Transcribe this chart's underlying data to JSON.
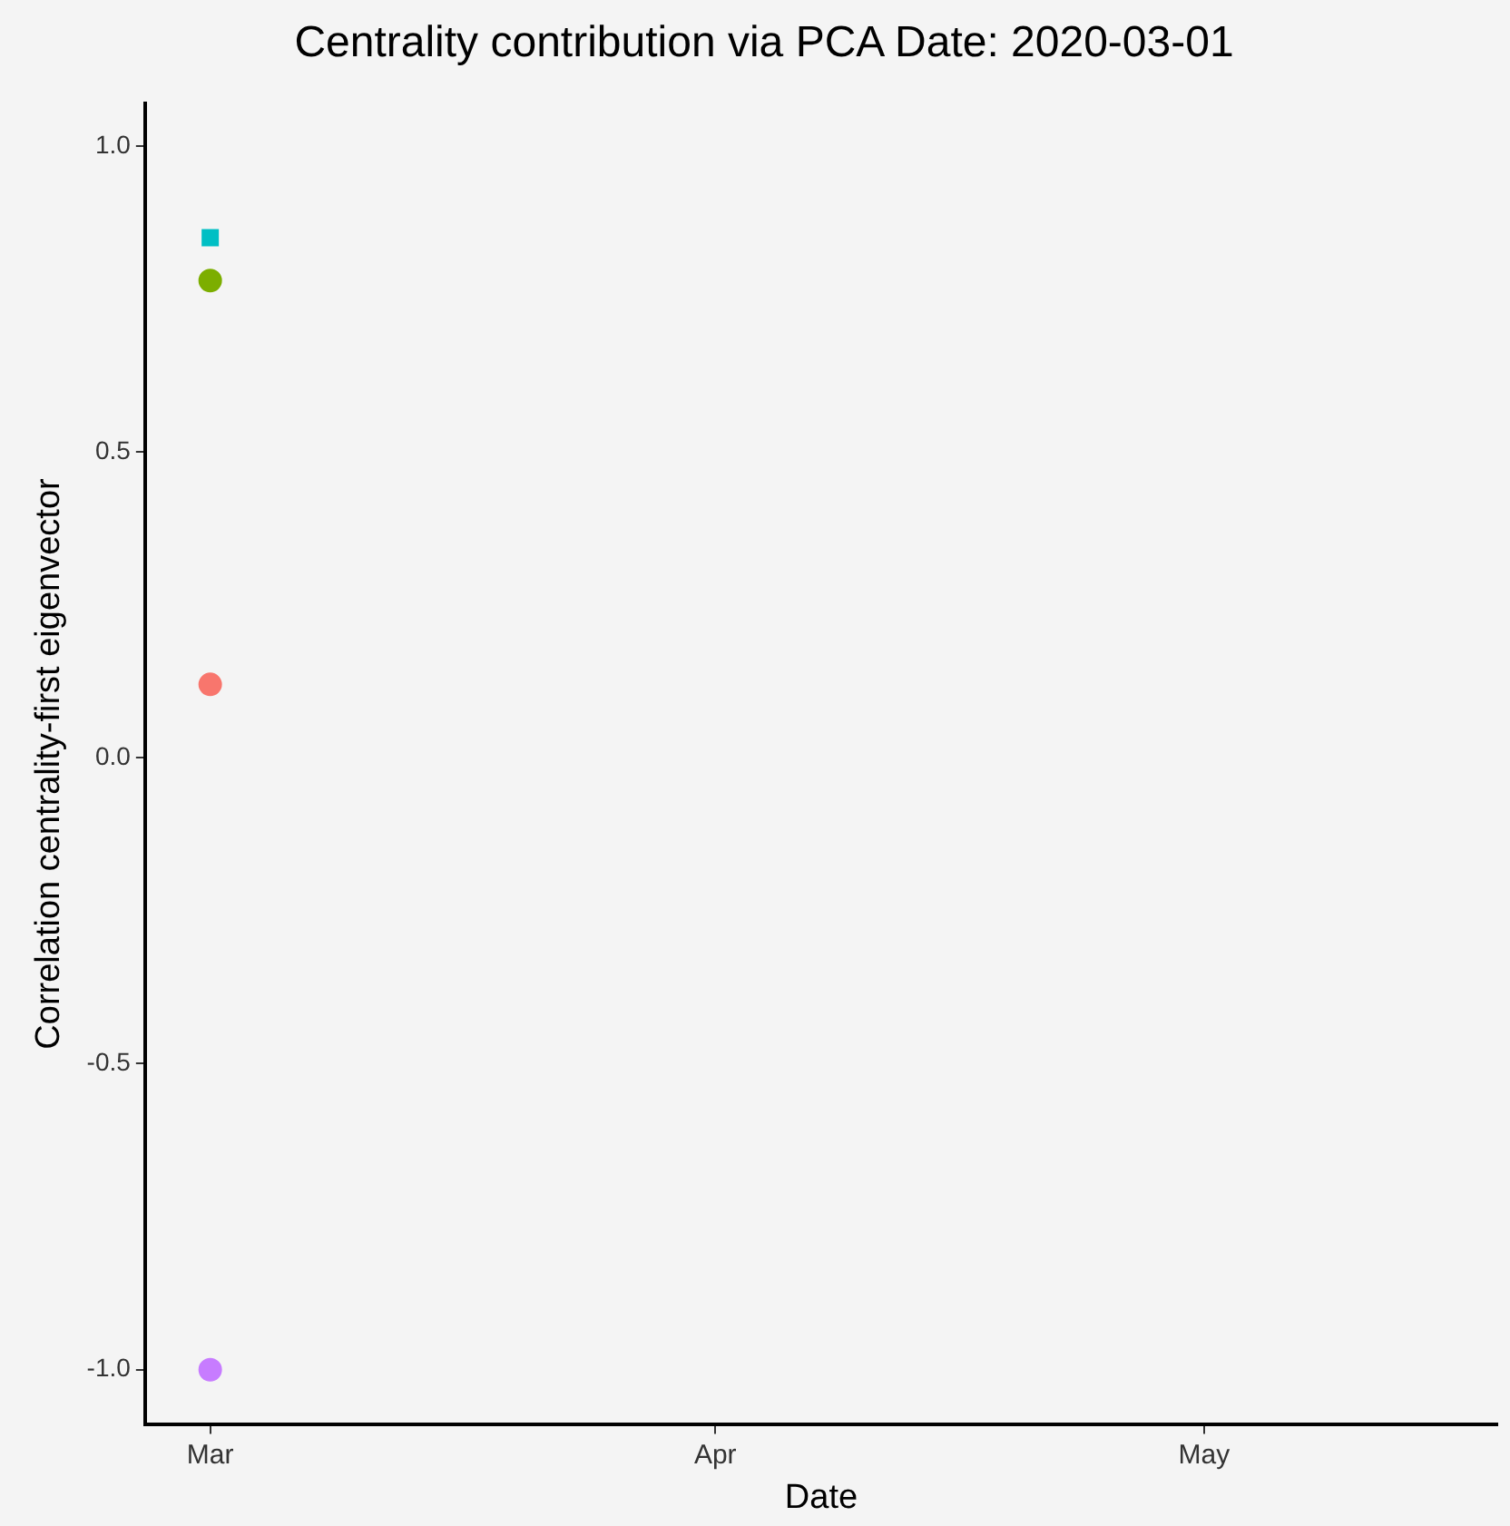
{
  "chart_data": {
    "type": "scatter",
    "title": "Centrality contribution via PCA Date: 2020-03-01",
    "xlabel": "Date",
    "ylabel": "Correlation centrality-first eigenvector",
    "x": [
      "2020-03-01"
    ],
    "series": [
      {
        "color": "#00bfc4",
        "values": [
          0.85
        ],
        "marker": "square"
      },
      {
        "color": "#7cae00",
        "values": [
          0.78
        ],
        "marker": "circle"
      },
      {
        "color": "#f8766d",
        "values": [
          0.12
        ],
        "marker": "circle"
      },
      {
        "color": "#c77cff",
        "values": [
          -1.0
        ],
        "marker": "circle"
      }
    ],
    "xlim": [
      "2020-02-26",
      "2020-05-19"
    ],
    "xticks": [
      {
        "value": "2020-03-01",
        "label": "Mar"
      },
      {
        "value": "2020-04-01",
        "label": "Apr"
      },
      {
        "value": "2020-05-01",
        "label": "May"
      }
    ],
    "ylim": [
      -1.09,
      1.07
    ],
    "yticks": [
      {
        "value": -1,
        "label": "-1.0"
      },
      {
        "value": -0.5,
        "label": "-0.5"
      },
      {
        "value": 0,
        "label": "0.0"
      },
      {
        "value": 0.5,
        "label": "0.5"
      },
      {
        "value": 1,
        "label": "1.0"
      }
    ],
    "grid": false,
    "legend": false
  }
}
